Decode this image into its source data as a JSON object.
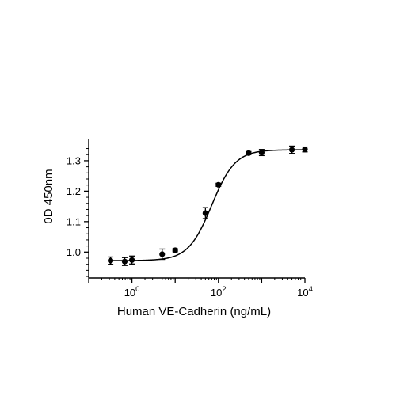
{
  "chart_data": {
    "type": "scatter",
    "xlabel": "Human VE-Cadherin (ng/mL)",
    "ylabel": "0D 450nm",
    "x_scale": "log10",
    "xlim": [
      0.1,
      10000
    ],
    "ylim": [
      0.915,
      1.37
    ],
    "x_ticks": [
      {
        "value": 1,
        "base": "10",
        "exp": "0"
      },
      {
        "value": 100,
        "base": "10",
        "exp": "2"
      },
      {
        "value": 10000,
        "base": "10",
        "exp": "4"
      }
    ],
    "y_ticks": [
      1.0,
      1.1,
      1.2,
      1.3
    ],
    "y_tick_labels": [
      "1.0",
      "1.1",
      "1.2",
      "1.3"
    ],
    "points": [
      {
        "x": 0.32,
        "y": 0.972,
        "err": 0.012
      },
      {
        "x": 0.68,
        "y": 0.969,
        "err": 0.013
      },
      {
        "x": 1.0,
        "y": 0.974,
        "err": 0.013
      },
      {
        "x": 5.0,
        "y": 0.993,
        "err": 0.017
      },
      {
        "x": 10.0,
        "y": 1.006,
        "err": 0.005
      },
      {
        "x": 50.0,
        "y": 1.128,
        "err": 0.018
      },
      {
        "x": 100.0,
        "y": 1.221,
        "err": 0.005
      },
      {
        "x": 500.0,
        "y": 1.325,
        "err": 0.005
      },
      {
        "x": 1000.0,
        "y": 1.327,
        "err": 0.01
      },
      {
        "x": 5000.0,
        "y": 1.336,
        "err": 0.012
      },
      {
        "x": 10000.0,
        "y": 1.337,
        "err": 0.008
      }
    ],
    "fit": {
      "model": "4PL",
      "bottom": 0.972,
      "top": 1.336,
      "ec50": 70,
      "hill": 1.6
    },
    "grid": false,
    "legend": "none",
    "colors": {
      "marker": "#000000",
      "line": "#000000"
    }
  }
}
